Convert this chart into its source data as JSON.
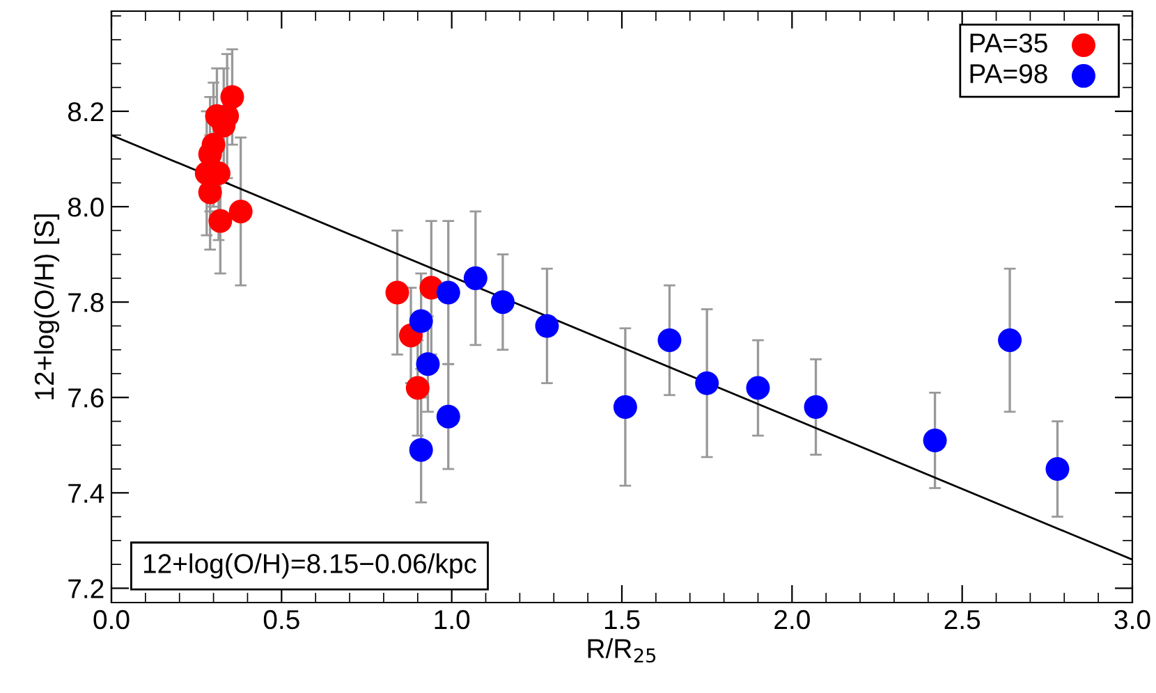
{
  "chart_data": {
    "type": "scatter",
    "xlabel": "R/R$_{25}$",
    "ylabel": "12+log(O/H) [S]",
    "xlim": [
      0,
      3.0
    ],
    "ylim": [
      7.17,
      8.41
    ],
    "xticks": [
      {
        "value": 0,
        "label": "0.0"
      },
      0.5,
      {
        "value": 1,
        "label": "1.0"
      },
      1.5,
      {
        "value": 2,
        "label": "2.0"
      },
      2.5,
      {
        "value": 3,
        "label": "3.0"
      }
    ],
    "yticks": [
      7.2,
      7.4,
      7.6,
      7.8,
      {
        "value": 8,
        "label": "8.0"
      },
      8.2
    ],
    "legend": "top right",
    "grid": false,
    "marker": "circle",
    "annotations": [
      "12+log(O/H)=8.15−0.06/kpc"
    ],
    "series": [
      {
        "name": "PA=35",
        "color": "#ff0000",
        "x": [
          0.29,
          0.28,
          0.3,
          0.29,
          0.315,
          0.31,
          0.33,
          0.34,
          0.355,
          0.32,
          0.38,
          0.84,
          0.88,
          0.94,
          0.9
        ],
        "values": [
          8.03,
          8.07,
          8.13,
          8.11,
          8.07,
          8.19,
          8.17,
          8.19,
          8.23,
          7.97,
          7.99,
          7.82,
          7.73,
          7.83,
          7.62
        ],
        "errors": [
          0.12,
          0.13,
          0.13,
          0.12,
          0.14,
          0.1,
          0.12,
          0.13,
          0.1,
          0.11,
          0.155,
          0.13,
          0.1,
          0.14,
          0.1
        ]
      },
      {
        "name": "PA=98",
        "color": "#0000ff",
        "x": [
          0.91,
          0.93,
          0.91,
          0.99,
          0.99,
          1.07,
          1.15,
          1.28,
          1.51,
          1.64,
          1.75,
          1.9,
          2.07,
          2.42,
          2.64,
          2.78
        ],
        "values": [
          7.76,
          7.67,
          7.49,
          7.56,
          7.82,
          7.85,
          7.8,
          7.75,
          7.58,
          7.72,
          7.63,
          7.62,
          7.58,
          7.51,
          7.72,
          7.45
        ],
        "errors": [
          0.1,
          0.1,
          0.11,
          0.11,
          0.15,
          0.14,
          0.1,
          0.12,
          0.165,
          0.115,
          0.155,
          0.1,
          0.1,
          0.1,
          0.15,
          0.1
        ]
      },
      {
        "type": "line",
        "marker": "none",
        "color": "#000000",
        "x": [
          0,
          3.0
        ],
        "values": [
          8.15,
          7.26
        ]
      }
    ]
  }
}
